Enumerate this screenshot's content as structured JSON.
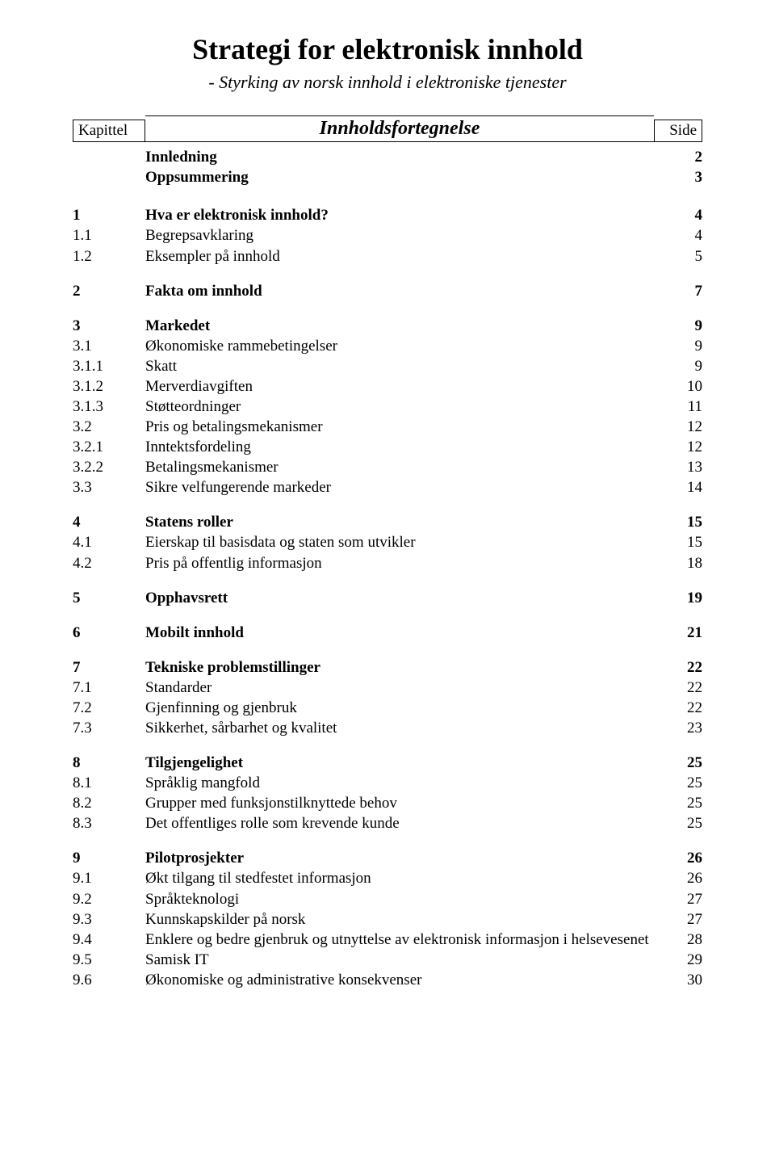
{
  "title": "Strategi for elektronisk innhold",
  "subtitle": "- Styrking av norsk innhold i elektroniske tjenester",
  "header": {
    "kapittel": "Kapittel",
    "center": "Innholdsfortegnelse",
    "side": "Side"
  },
  "intro": [
    {
      "num": "",
      "label": "Innledning",
      "page": "2",
      "bold": true
    },
    {
      "num": "",
      "label": "Oppsummering",
      "page": "3",
      "bold": true
    }
  ],
  "groups": [
    [
      {
        "num": "1",
        "label": "Hva er elektronisk innhold?",
        "page": "4",
        "bold": true
      },
      {
        "num": "1.1",
        "label": "Begrepsavklaring",
        "page": "4",
        "bold": false
      },
      {
        "num": "1.2",
        "label": "Eksempler på innhold",
        "page": "5",
        "bold": false
      }
    ],
    [
      {
        "num": "2",
        "label": "Fakta om innhold",
        "page": "7",
        "bold": true
      }
    ],
    [
      {
        "num": "3",
        "label": "Markedet",
        "page": "9",
        "bold": true
      },
      {
        "num": "3.1",
        "label": "Økonomiske rammebetingelser",
        "page": "9",
        "bold": false
      },
      {
        "num": "3.1.1",
        "label": "Skatt",
        "page": "9",
        "bold": false
      },
      {
        "num": "3.1.2",
        "label": "Merverdiavgiften",
        "page": "10",
        "bold": false
      },
      {
        "num": "3.1.3",
        "label": "Støtteordninger",
        "page": "11",
        "bold": false
      },
      {
        "num": "3.2",
        "label": "Pris og betalingsmekanismer",
        "page": "12",
        "bold": false
      },
      {
        "num": "3.2.1",
        "label": "Inntektsfordeling",
        "page": "12",
        "bold": false
      },
      {
        "num": "3.2.2",
        "label": "Betalingsmekanismer",
        "page": "13",
        "bold": false
      },
      {
        "num": "3.3",
        "label": "Sikre velfungerende markeder",
        "page": "14",
        "bold": false
      }
    ],
    [
      {
        "num": "4",
        "label": "Statens roller",
        "page": "15",
        "bold": true
      },
      {
        "num": "4.1",
        "label": "Eierskap til basisdata og staten som utvikler",
        "page": "15",
        "bold": false
      },
      {
        "num": "4.2",
        "label": "Pris på offentlig informasjon",
        "page": "18",
        "bold": false
      }
    ],
    [
      {
        "num": "5",
        "label": "Opphavsrett",
        "page": "19",
        "bold": true
      }
    ],
    [
      {
        "num": "6",
        "label": "Mobilt innhold",
        "page": "21",
        "bold": true
      }
    ],
    [
      {
        "num": "7",
        "label": "Tekniske problemstillinger",
        "page": "22",
        "bold": true
      },
      {
        "num": "7.1",
        "label": "Standarder",
        "page": "22",
        "bold": false
      },
      {
        "num": "7.2",
        "label": "Gjenfinning og gjenbruk",
        "page": "22",
        "bold": false
      },
      {
        "num": "7.3",
        "label": "Sikkerhet, sårbarhet og kvalitet",
        "page": "23",
        "bold": false
      }
    ],
    [
      {
        "num": "8",
        "label": "Tilgjengelighet",
        "page": "25",
        "bold": true
      },
      {
        "num": "8.1",
        "label": "Språklig mangfold",
        "page": "25",
        "bold": false
      },
      {
        "num": "8.2",
        "label": "Grupper med funksjonstilknyttede behov",
        "page": "25",
        "bold": false
      },
      {
        "num": "8.3",
        "label": "Det offentliges rolle som krevende kunde",
        "page": "25",
        "bold": false
      }
    ],
    [
      {
        "num": "9",
        "label": "Pilotprosjekter",
        "page": "26",
        "bold": true
      },
      {
        "num": "9.1",
        "label": "Økt tilgang til stedfestet informasjon",
        "page": "26",
        "bold": false
      },
      {
        "num": "9.2",
        "label": "Språkteknologi",
        "page": "27",
        "bold": false
      },
      {
        "num": "9.3",
        "label": "Kunnskapskilder på norsk",
        "page": "27",
        "bold": false
      },
      {
        "num": "9.4",
        "label": "Enklere og bedre gjenbruk og utnyttelse av elektronisk informasjon i helsevesenet",
        "page": "28",
        "bold": false
      },
      {
        "num": "9.5",
        "label": "Samisk IT",
        "page": "29",
        "bold": false
      },
      {
        "num": "9.6",
        "label": "Økonomiske og administrative konsekvenser",
        "page": "30",
        "bold": false
      }
    ]
  ]
}
